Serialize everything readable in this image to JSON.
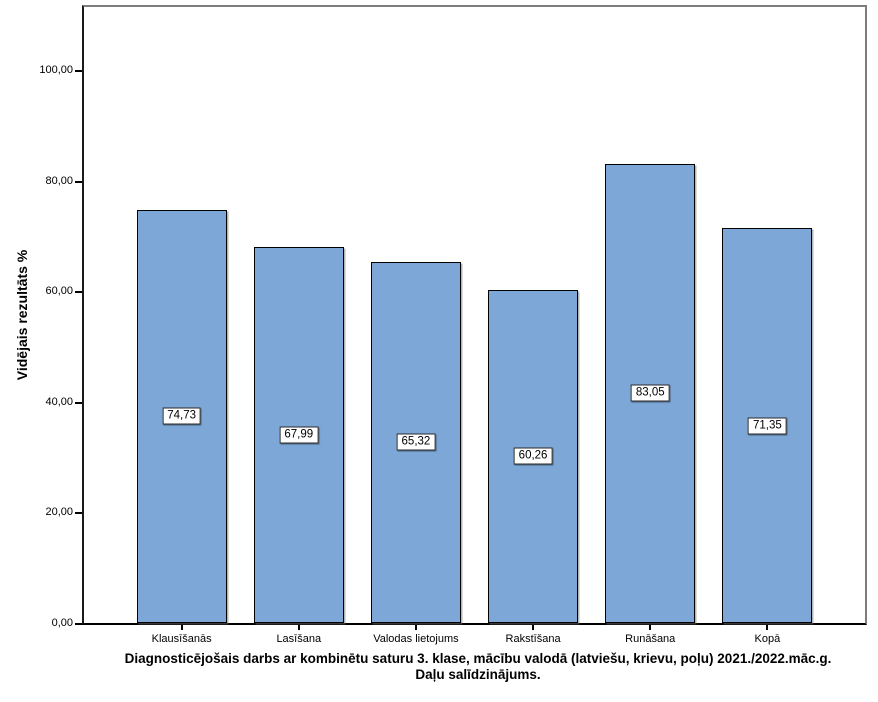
{
  "figure": {
    "title_line1": "Diagnosticējošais darbs ar kombinētu saturu 3. klase, mācību valodā (latviešu, krievu, poļu) 2021./2022.māc.g.",
    "title_line2": "Daļu salīdzinājums."
  },
  "chart_data": {
    "type": "bar",
    "title": "Diagnosticējošais darbs ar kombinētu saturu 3. klase, mācību valodā (latviešu, krievu, poļu) 2021./2022.māc.g. Daļu salīdzinājums.",
    "ylabel": "Vidējais rezultāts %",
    "xlabel": "",
    "categories": [
      "Klausīšanās",
      "Lasīšana",
      "Valodas lietojums",
      "Rakstīšana",
      "Runāšana",
      "Kopā"
    ],
    "values": [
      74.73,
      67.99,
      65.32,
      60.26,
      83.05,
      71.35
    ],
    "value_labels": [
      "74,73",
      "67,99",
      "65,32",
      "60,26",
      "83,05",
      "71,35"
    ],
    "yticks": [
      0,
      20,
      40,
      60,
      80,
      100
    ],
    "ytick_labels": [
      "0,00",
      "20,00",
      "40,00",
      "60,00",
      "80,00",
      "100,00"
    ],
    "ylim": [
      0,
      111.5
    ],
    "grid": false,
    "legend": "none",
    "bar_color": "#7CA7D6",
    "bar_border_color": "#000000",
    "frame_color": "#7d7d7d",
    "axis_color": "#000000",
    "decimal_separator": ","
  }
}
